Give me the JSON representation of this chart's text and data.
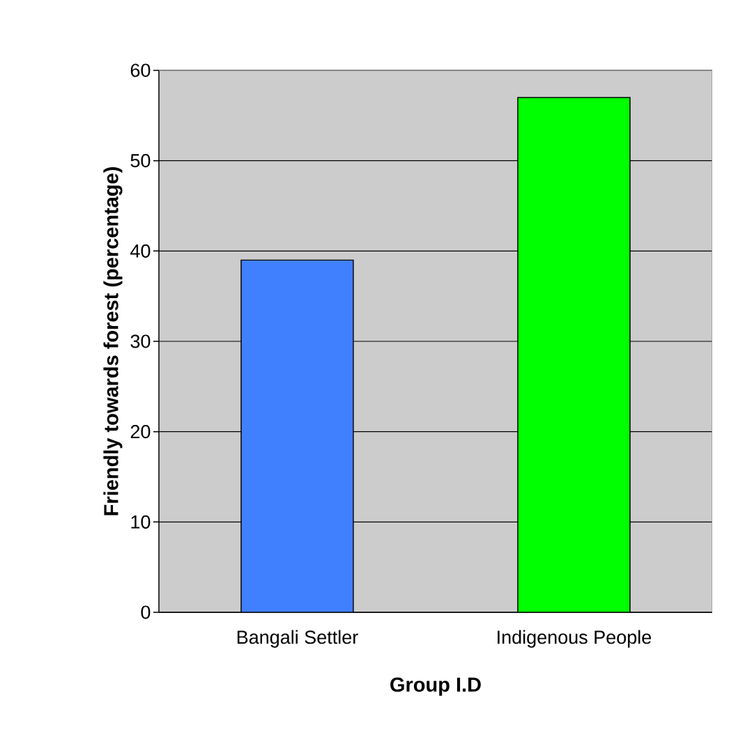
{
  "chart_data": {
    "type": "bar",
    "xlabel": "Group I.D",
    "ylabel": "Friendly towards forest (percentage)",
    "categories": [
      "Bangali Settler",
      "Indigenous People"
    ],
    "values": [
      39,
      57
    ],
    "colors": [
      "#4080ff",
      "#00ff00"
    ],
    "ylim": [
      0,
      60
    ],
    "yticks": [
      0,
      10,
      20,
      30,
      40,
      50,
      60
    ],
    "grid": "y"
  }
}
